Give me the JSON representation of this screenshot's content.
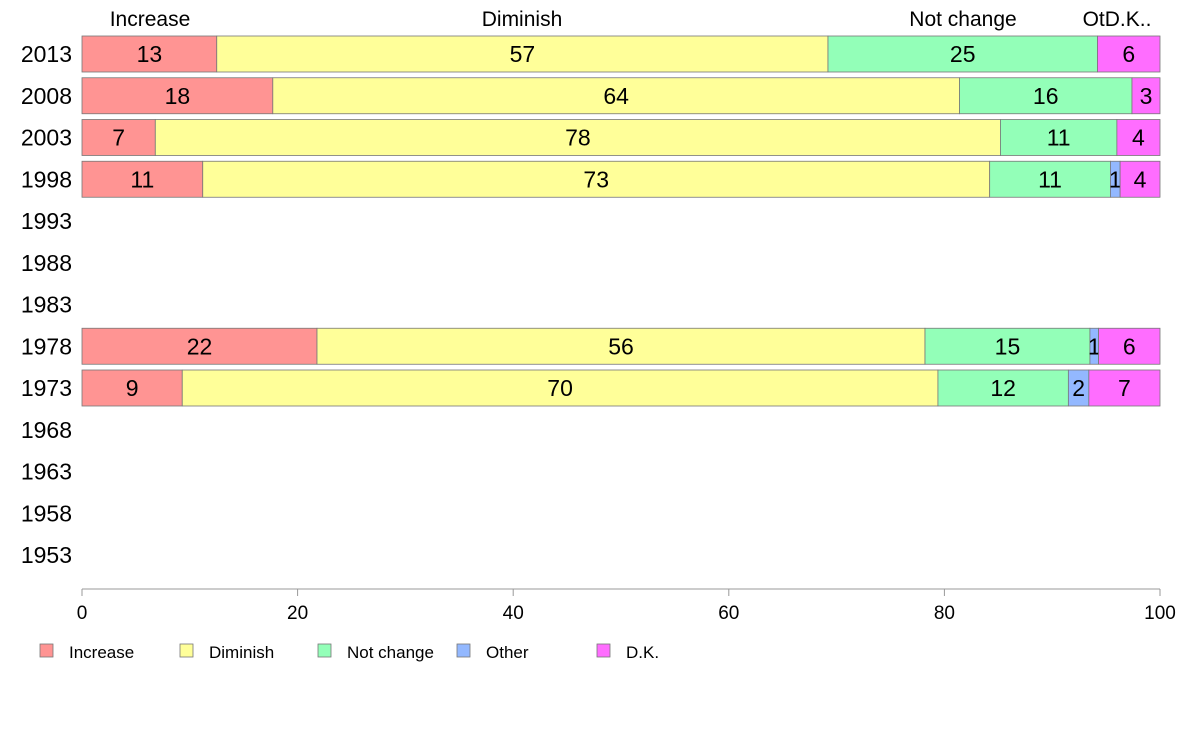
{
  "chart_data": {
    "type": "bar",
    "orientation": "horizontal",
    "stacked": true,
    "xlim": [
      0,
      100
    ],
    "x_ticks": [
      0,
      20,
      40,
      60,
      80,
      100
    ],
    "categories": [
      "2013",
      "2008",
      "2003",
      "1998",
      "1993",
      "1988",
      "1983",
      "1978",
      "1973",
      "1968",
      "1963",
      "1958",
      "1953"
    ],
    "top_labels": [
      "Increase",
      "Diminish",
      "Not change",
      "OtD.K.."
    ],
    "series": [
      {
        "name": "Increase",
        "color": "#ff9493",
        "values": [
          12.5,
          17.7,
          6.8,
          11.2,
          null,
          null,
          null,
          21.8,
          9.3,
          null,
          null,
          null,
          null
        ],
        "labels": [
          "13",
          "18",
          "7",
          "11",
          null,
          null,
          null,
          "22",
          "9",
          null,
          null,
          null,
          null
        ]
      },
      {
        "name": "Diminish",
        "color": "#ffff99",
        "values": [
          56.7,
          63.7,
          78.4,
          73.0,
          null,
          null,
          null,
          56.4,
          70.1,
          null,
          null,
          null,
          null
        ],
        "labels": [
          "57",
          "64",
          "78",
          "73",
          null,
          null,
          null,
          "56",
          "70",
          null,
          null,
          null,
          null
        ]
      },
      {
        "name": "Not change",
        "color": "#93ffb8",
        "values": [
          25.0,
          16.0,
          10.8,
          11.2,
          null,
          null,
          null,
          15.3,
          12.1,
          null,
          null,
          null,
          null
        ],
        "labels": [
          "25",
          "16",
          "11",
          "11",
          null,
          null,
          null,
          "15",
          "12",
          null,
          null,
          null,
          null
        ]
      },
      {
        "name": "Other",
        "color": "#93b8ff",
        "values": [
          0,
          0,
          0,
          0.9,
          null,
          null,
          null,
          0.8,
          1.9,
          null,
          null,
          null,
          null
        ],
        "labels": [
          null,
          null,
          null,
          "1",
          null,
          null,
          null,
          "1",
          "2",
          null,
          null,
          null,
          null
        ]
      },
      {
        "name": "D.K.",
        "color": "#ff6dff",
        "values": [
          5.8,
          2.6,
          4.0,
          3.7,
          null,
          null,
          null,
          5.7,
          6.6,
          null,
          null,
          null,
          null
        ],
        "labels": [
          "6",
          "3",
          "4",
          "4",
          null,
          null,
          null,
          "6",
          "7",
          null,
          null,
          null,
          null
        ]
      }
    ],
    "legend_position": "bottom-left",
    "grid": false
  }
}
